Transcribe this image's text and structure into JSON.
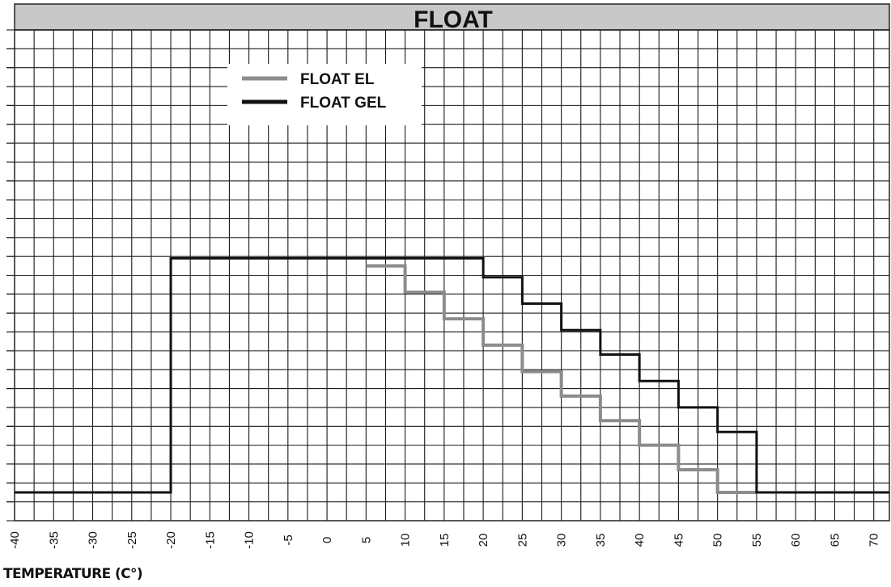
{
  "chart_data": {
    "type": "line",
    "title": "FLOAT",
    "xlabel": "TEMPERATURE (C°)",
    "ylabel": "",
    "xlim": [
      -40,
      72
    ],
    "ylim": [
      0,
      26
    ],
    "x_ticks": [
      -40,
      -35,
      -30,
      -25,
      -20,
      -15,
      -10,
      -5,
      0,
      5,
      10,
      15,
      20,
      25,
      30,
      35,
      40,
      45,
      50,
      55,
      60,
      65,
      70
    ],
    "y_ticks_unlabeled": true,
    "grid": true,
    "legend_position": "top-left",
    "series": [
      {
        "name": "FLOAT EL",
        "color": "#8c8c8c",
        "step": true,
        "x": [
          5,
          10,
          15,
          20,
          25,
          30,
          35,
          40,
          45,
          50,
          55
        ],
        "y": [
          13.5,
          12.1,
          10.7,
          9.3,
          7.9,
          6.6,
          5.3,
          4.0,
          2.7,
          1.5,
          1.5
        ]
      },
      {
        "name": "FLOAT GEL",
        "color": "#111111",
        "step": true,
        "x": [
          -40,
          -20,
          20,
          25,
          30,
          35,
          40,
          45,
          50,
          55,
          72
        ],
        "y": [
          1.5,
          13.9,
          12.9,
          11.5,
          10.1,
          8.8,
          7.4,
          6.0,
          4.7,
          1.5,
          1.5
        ]
      }
    ]
  }
}
